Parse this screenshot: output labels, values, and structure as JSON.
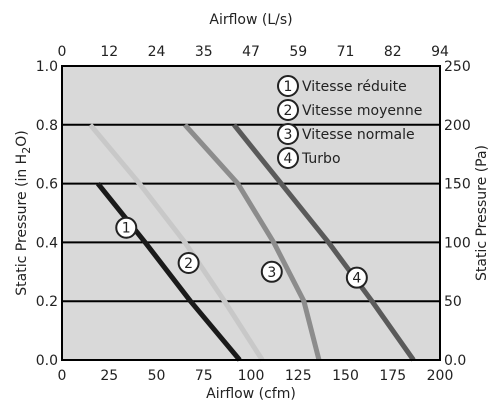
{
  "chart_data": {
    "type": "line",
    "xlabel": "Airflow (cfm)",
    "x2label": "Airflow (L/s)",
    "ylabel_prefix": "Static Pressure (in H",
    "ylabel_sub": "2",
    "ylabel_suffix": "O)",
    "y2label": "Static Pressure (Pa)",
    "xlim": [
      0,
      200
    ],
    "ylim": [
      0.0,
      1.0
    ],
    "x_ticks": [
      "0",
      "25",
      "50",
      "75",
      "100",
      "125",
      "150",
      "175",
      "200"
    ],
    "x2_ticks": [
      "0",
      "12",
      "24",
      "35",
      "47",
      "59",
      "71",
      "82",
      "94"
    ],
    "y_ticks": [
      "0.0",
      "0.2",
      "0.4",
      "0.6",
      "0.8",
      "1.0"
    ],
    "y2_ticks": [
      "0.0",
      "50",
      "100",
      "150",
      "200",
      "250"
    ],
    "grid": "horizontal",
    "legend_position": "top-right",
    "colors": {
      "background": "#d9d9d9",
      "grid": "#000000",
      "series_1": "#1a1a1a",
      "series_2": "#c8c8c8",
      "series_3": "#8c8c8c",
      "series_4": "#5a5a5a"
    },
    "series": [
      {
        "name": "Vitesse réduite",
        "marker": "1",
        "color": "#1a1a1a",
        "points": [
          [
            19,
            0.6
          ],
          [
            44,
            0.4
          ],
          [
            68,
            0.2
          ],
          [
            94,
            0.0
          ]
        ],
        "label_at": [
          34,
          0.45
        ]
      },
      {
        "name": "Vitesse moyenne",
        "marker": "2",
        "color": "#c8c8c8",
        "points": [
          [
            15,
            0.8
          ],
          [
            41,
            0.6
          ],
          [
            65,
            0.4
          ],
          [
            86,
            0.2
          ],
          [
            106,
            0.0
          ]
        ],
        "label_at": [
          67,
          0.33
        ]
      },
      {
        "name": "Vitesse normale",
        "marker": "3",
        "color": "#8c8c8c",
        "points": [
          [
            65,
            0.8
          ],
          [
            93,
            0.6
          ],
          [
            112,
            0.4
          ],
          [
            128,
            0.2
          ],
          [
            136,
            0.0
          ]
        ],
        "label_at": [
          111,
          0.3
        ]
      },
      {
        "name": "Turbo",
        "marker": "4",
        "color": "#5a5a5a",
        "points": [
          [
            91,
            0.8
          ],
          [
            116,
            0.6
          ],
          [
            141,
            0.4
          ],
          [
            164,
            0.2
          ],
          [
            186,
            0.0
          ]
        ],
        "label_at": [
          156,
          0.28
        ]
      }
    ]
  }
}
